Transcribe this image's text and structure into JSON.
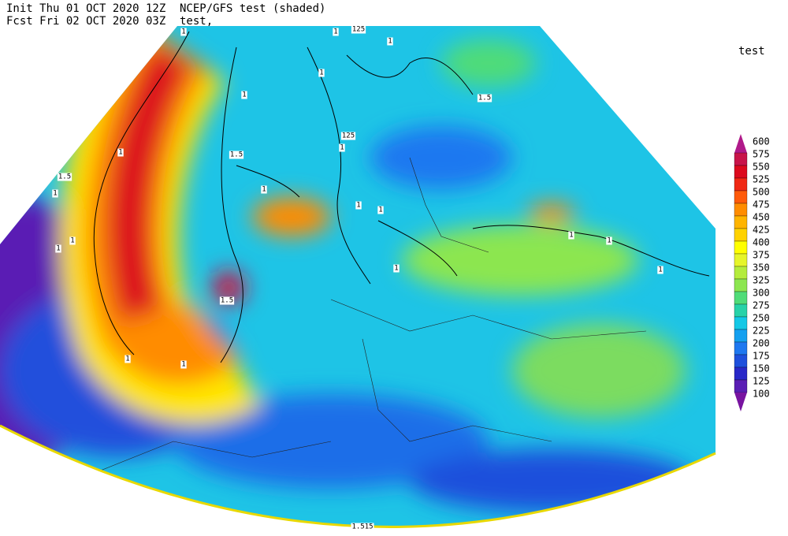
{
  "header": {
    "init": "Init  Thu 01 OCT 2020 12Z",
    "title": "NCEP/GFS test (shaded)",
    "forecast": "Fcst Fri 02 OCT 2020 03Z",
    "subtitle": "test,"
  },
  "legend": {
    "title": "test",
    "levels": [
      600,
      575,
      550,
      525,
      500,
      475,
      450,
      425,
      400,
      375,
      350,
      325,
      300,
      275,
      250,
      225,
      200,
      175,
      150,
      125,
      100
    ],
    "colors": [
      "#b01a8a",
      "#c8144a",
      "#dc0a1e",
      "#f02814",
      "#ff5a0a",
      "#ff8c00",
      "#ffb400",
      "#ffd200",
      "#ffff00",
      "#e6f52a",
      "#b4ec3c",
      "#8ce650",
      "#50dc78",
      "#28d2a8",
      "#14c8e6",
      "#14a0f0",
      "#1e78f0",
      "#1e50dc",
      "#2828c8",
      "#5a1eb4",
      "#7814a0"
    ]
  },
  "contour_labels": [
    "1",
    "125",
    "1",
    "1",
    "1",
    "1",
    "1.5",
    "125",
    "1",
    "1",
    "1.5",
    "1.5",
    "1",
    "1",
    "1",
    "1",
    "1",
    "1",
    "1",
    "1",
    "1",
    "1",
    "1.5",
    "1",
    "1",
    "1.515"
  ]
}
